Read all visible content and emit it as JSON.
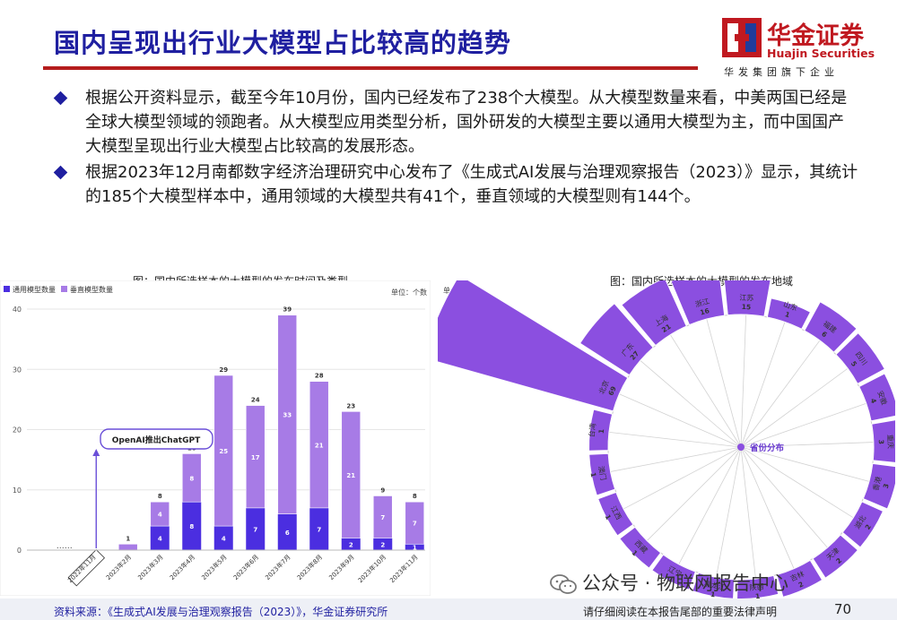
{
  "header": {
    "title": "国内呈现出行业大模型占比较高的趋势"
  },
  "logo": {
    "name_cn": "华金证券",
    "name_en": "Huajin Securities",
    "tagline": "华发集团旗下企业"
  },
  "bullets": [
    "根据公开资料显示，截至今年10月份，国内已经发布了238个大模型。从大模型数量来看，中美两国已经是全球大模型领域的领跑者。从大模型应用类型分析，国外研发的大模型主要以通用大模型为主，而中国国产大模型呈现出行业大模型占比较高的发展形态。",
    "根据2023年12月南都数字经济治理研究中心发布了《生成式AI发展与治理观察报告（2023）》显示，其统计的185个大模型样本中，通用领域的大模型共有41个，垂直领域的大模型则有144个。"
  ],
  "chart_data": [
    {
      "type": "bar",
      "title": "图：国内所选样本的大模型的发布时间及类型",
      "unit": "单位：个数",
      "categories": [
        "……",
        "2022年11月",
        "2023年2月",
        "2023年3月",
        "2023年4月",
        "2023年5月",
        "2023年6月",
        "2023年7月",
        "2023年8月",
        "2023年9月",
        "2023年10月",
        "2023年11月"
      ],
      "series": [
        {
          "name": "通用模型数量",
          "color": "#4b2ee0",
          "values": [
            null,
            null,
            0,
            4,
            8,
            4,
            7,
            6,
            7,
            2,
            2,
            1
          ]
        },
        {
          "name": "垂直模型数量",
          "color": "#a77be6",
          "values": [
            null,
            null,
            1,
            4,
            8,
            25,
            17,
            33,
            21,
            21,
            7,
            7
          ]
        }
      ],
      "totals": [
        null,
        null,
        1,
        8,
        16,
        29,
        24,
        39,
        28,
        23,
        9,
        8
      ],
      "ylim": [
        0,
        40
      ],
      "yticks": [
        0,
        10,
        20,
        30,
        40
      ],
      "annotation": "OpenAI推出ChatGPT",
      "legend": "top-left"
    },
    {
      "type": "bar",
      "subtype": "radial",
      "title": "图：国内所选样本的大模型的发布地域",
      "unit": "单位：个数",
      "center_label": "省份分布",
      "categories": [
        "江苏",
        "山东",
        "福建",
        "四川",
        "安徽",
        "重庆",
        "香港",
        "湖北",
        "天津",
        "吉林",
        "陕西",
        "黑龙江",
        "辽宁",
        "西藏",
        "江西",
        "澳门",
        "台湾",
        "北京",
        "广东",
        "上海",
        "浙江"
      ],
      "values": [
        15,
        1,
        6,
        5,
        4,
        3,
        3,
        2,
        2,
        2,
        1,
        1,
        1,
        1,
        1,
        1,
        1,
        69,
        27,
        21,
        16
      ],
      "color": "#8b4fe0"
    }
  ],
  "footer": {
    "source": "资料来源：《生成式AI发展与治理观察报告（2023）》，华金证券研究所",
    "note": "请仔细阅读在本报告尾部的重要法律声明",
    "page": "70"
  },
  "watermark": "公众号 · 物联网报告中心"
}
